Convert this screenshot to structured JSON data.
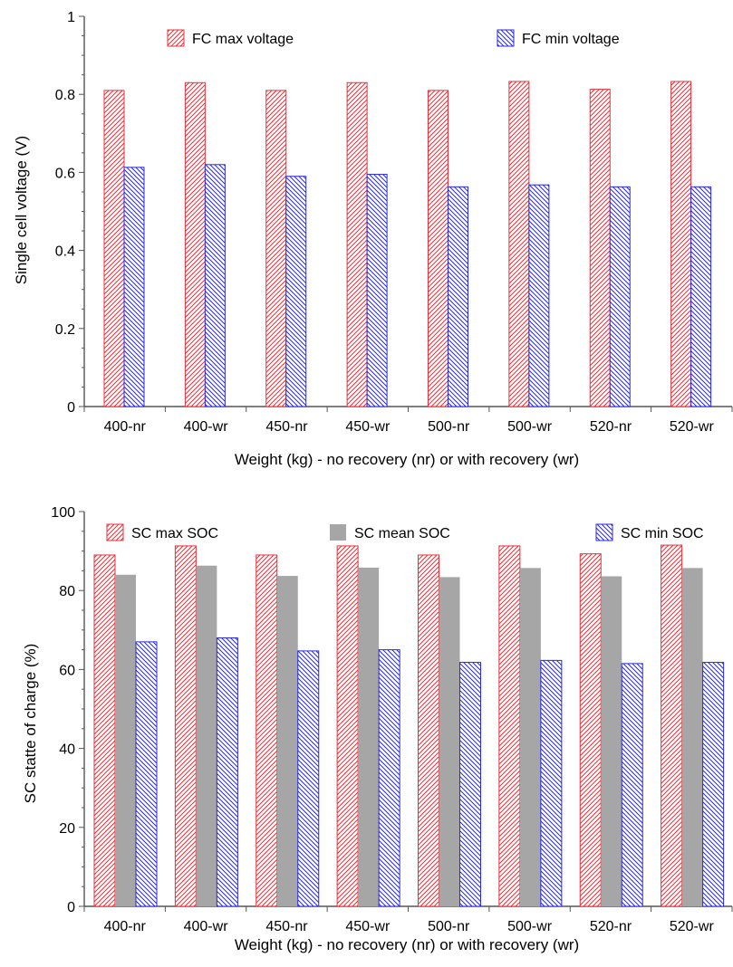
{
  "chart_data": [
    {
      "type": "bar",
      "categories": [
        "400-nr",
        "400-wr",
        "450-nr",
        "450-wr",
        "500-nr",
        "500-wr",
        "520-nr",
        "520-wr"
      ],
      "series": [
        {
          "name": "FC max voltage",
          "values": [
            0.81,
            0.83,
            0.81,
            0.83,
            0.81,
            0.833,
            0.813,
            0.833
          ],
          "color": "#e8303a",
          "pattern": "hatch-right"
        },
        {
          "name": "FC min voltage",
          "values": [
            0.613,
            0.62,
            0.59,
            0.595,
            0.563,
            0.568,
            0.563,
            0.563
          ],
          "color": "#2a2ae0",
          "pattern": "hatch-left"
        }
      ],
      "xlabel": "Weight (kg) - no recovery (nr) or with recovery (wr)",
      "ylabel": "Single cell voltage (V)",
      "ylim": [
        0,
        1
      ],
      "yticks": [
        "0",
        "0.2",
        "0.4",
        "0.6",
        "0.8",
        "1"
      ],
      "grid": false,
      "legend": "top"
    },
    {
      "type": "bar",
      "categories": [
        "400-nr",
        "400-wr",
        "450-nr",
        "450-wr",
        "500-nr",
        "500-wr",
        "520-nr",
        "520-wr"
      ],
      "series": [
        {
          "name": "SC max SOC",
          "values": [
            89,
            91.3,
            89,
            91.3,
            89,
            91.3,
            89.3,
            91.5
          ],
          "color": "#e8303a",
          "pattern": "hatch-right"
        },
        {
          "name": "SC mean SOC",
          "values": [
            84,
            86.3,
            83.7,
            85.8,
            83.4,
            85.7,
            83.6,
            85.7
          ],
          "color": "#a6a6a6",
          "pattern": "solid"
        },
        {
          "name": "SC min SOC",
          "values": [
            67,
            68,
            64.7,
            65,
            61.8,
            62.3,
            61.5,
            61.8
          ],
          "color": "#2a2ae0",
          "pattern": "hatch-left"
        }
      ],
      "xlabel": "Weight (kg) - no recovery (nr) or with recovery (wr)",
      "ylabel": "SC statte of charge (%)",
      "ylim": [
        0,
        100
      ],
      "yticks": [
        "0",
        "20",
        "40",
        "60",
        "80",
        "100"
      ],
      "grid": false,
      "legend": "top"
    }
  ]
}
